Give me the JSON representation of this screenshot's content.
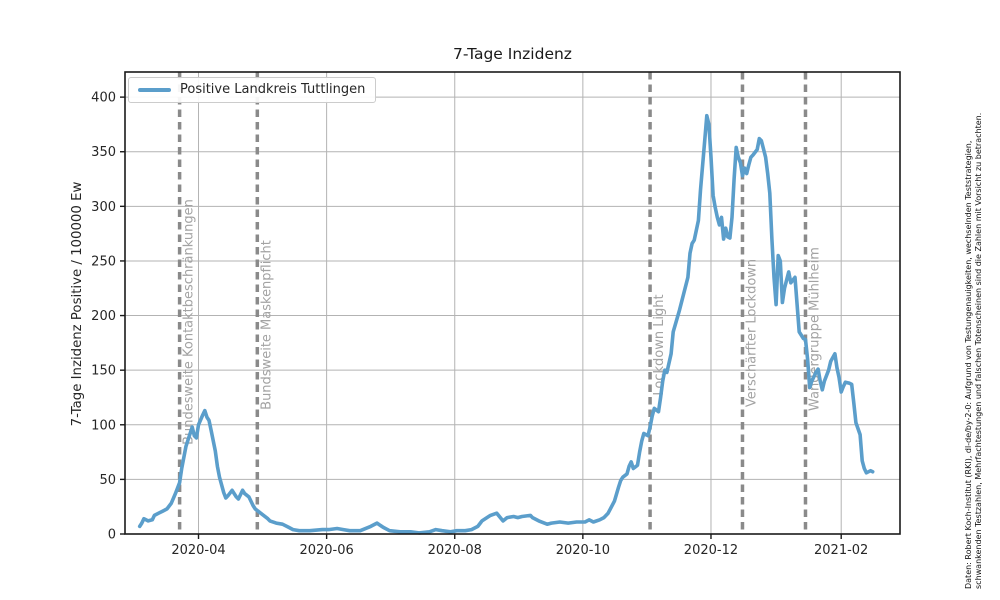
{
  "title": "7-Tage Inzidenz",
  "source_note": {
    "line1": "Daten: Robert Koch-Institut (RKI), dl-de/by-2-0: Aufgrund von Testungenauigkeiten, wechselnden Teststrategien,",
    "line2": "schwankenden Testzahlen, Mehrfachtestungen und falschen Totenscheinen sind die Zahlen mit Vorsicht zu betrachten."
  },
  "colors": {
    "series": "#5b9ecb",
    "grid": "#b3b3b3",
    "frame": "#1a1a1a",
    "text": "#262626",
    "event_line": "#8a8a8a",
    "event_label": "#a3a3a3"
  },
  "chart_data": {
    "type": "line",
    "title": "7-Tage Inzidenz",
    "xlabel": "",
    "ylabel": "7-Tage Inzidenz Positive / 100000 Ew",
    "grid": true,
    "legend_position": "upper left",
    "xlim": [
      "2020-02-26",
      "2021-03-01"
    ],
    "ylim": [
      0,
      423
    ],
    "yticks": [
      0,
      50,
      100,
      150,
      200,
      250,
      300,
      350,
      400
    ],
    "xticks": [
      {
        "date": "2020-04-01",
        "label": "2020-04"
      },
      {
        "date": "2020-06-01",
        "label": "2020-06"
      },
      {
        "date": "2020-08-01",
        "label": "2020-08"
      },
      {
        "date": "2020-10-01",
        "label": "2020-10"
      },
      {
        "date": "2020-12-01",
        "label": "2020-12"
      },
      {
        "date": "2021-02-01",
        "label": "2021-02"
      }
    ],
    "events": [
      {
        "date": "2020-03-23",
        "label": "Bundesweite Kontaktbeschränkungen"
      },
      {
        "date": "2020-04-29",
        "label": "Bundsweite Maskenpflicht"
      },
      {
        "date": "2020-11-02",
        "label": "Lockdown Light"
      },
      {
        "date": "2020-12-16",
        "label": "Verschärfter Lockdown"
      },
      {
        "date": "2021-01-15",
        "label": "Wandergruppe Mühlheim"
      }
    ],
    "series": [
      {
        "name": "Positive Landkreis Tuttlingen",
        "color": "#5b9ecb",
        "points": [
          [
            "2020-03-04",
            7
          ],
          [
            "2020-03-05",
            10
          ],
          [
            "2020-03-06",
            14
          ],
          [
            "2020-03-08",
            12
          ],
          [
            "2020-03-10",
            13
          ],
          [
            "2020-03-11",
            17
          ],
          [
            "2020-03-13",
            19
          ],
          [
            "2020-03-15",
            21
          ],
          [
            "2020-03-17",
            23
          ],
          [
            "2020-03-19",
            28
          ],
          [
            "2020-03-21",
            37
          ],
          [
            "2020-03-23",
            47
          ],
          [
            "2020-03-24",
            60
          ],
          [
            "2020-03-26",
            80
          ],
          [
            "2020-03-28",
            92
          ],
          [
            "2020-03-29",
            98
          ],
          [
            "2020-03-30",
            90
          ],
          [
            "2020-03-31",
            88
          ],
          [
            "2020-04-01",
            100
          ],
          [
            "2020-04-03",
            109
          ],
          [
            "2020-04-04",
            113
          ],
          [
            "2020-04-05",
            107
          ],
          [
            "2020-04-06",
            104
          ],
          [
            "2020-04-07",
            95
          ],
          [
            "2020-04-09",
            76
          ],
          [
            "2020-04-10",
            62
          ],
          [
            "2020-04-11",
            52
          ],
          [
            "2020-04-13",
            38
          ],
          [
            "2020-04-14",
            33
          ],
          [
            "2020-04-15",
            35
          ],
          [
            "2020-04-17",
            40
          ],
          [
            "2020-04-19",
            34
          ],
          [
            "2020-04-20",
            32
          ],
          [
            "2020-04-22",
            40
          ],
          [
            "2020-04-23",
            37
          ],
          [
            "2020-04-25",
            34
          ],
          [
            "2020-04-27",
            26
          ],
          [
            "2020-04-28",
            23
          ],
          [
            "2020-04-30",
            20
          ],
          [
            "2020-05-02",
            17
          ],
          [
            "2020-05-04",
            14
          ],
          [
            "2020-05-05",
            12
          ],
          [
            "2020-05-08",
            10
          ],
          [
            "2020-05-11",
            9
          ],
          [
            "2020-05-14",
            6
          ],
          [
            "2020-05-16",
            4
          ],
          [
            "2020-05-19",
            3
          ],
          [
            "2020-05-24",
            3
          ],
          [
            "2020-05-30",
            4
          ],
          [
            "2020-06-02",
            4
          ],
          [
            "2020-06-06",
            5
          ],
          [
            "2020-06-09",
            4
          ],
          [
            "2020-06-12",
            3
          ],
          [
            "2020-06-17",
            3
          ],
          [
            "2020-06-22",
            7
          ],
          [
            "2020-06-25",
            10
          ],
          [
            "2020-06-28",
            6
          ],
          [
            "2020-07-01",
            3
          ],
          [
            "2020-07-06",
            2
          ],
          [
            "2020-07-11",
            2
          ],
          [
            "2020-07-15",
            1
          ],
          [
            "2020-07-20",
            2
          ],
          [
            "2020-07-23",
            4
          ],
          [
            "2020-07-26",
            3
          ],
          [
            "2020-07-30",
            2
          ],
          [
            "2020-08-02",
            3
          ],
          [
            "2020-08-06",
            3
          ],
          [
            "2020-08-09",
            4
          ],
          [
            "2020-08-12",
            7
          ],
          [
            "2020-08-14",
            12
          ],
          [
            "2020-08-18",
            17
          ],
          [
            "2020-08-21",
            19
          ],
          [
            "2020-08-24",
            12
          ],
          [
            "2020-08-26",
            15
          ],
          [
            "2020-08-29",
            16
          ],
          [
            "2020-08-31",
            15
          ],
          [
            "2020-09-02",
            16
          ],
          [
            "2020-09-06",
            17
          ],
          [
            "2020-09-07",
            15
          ],
          [
            "2020-09-10",
            12
          ],
          [
            "2020-09-14",
            9
          ],
          [
            "2020-09-16",
            10
          ],
          [
            "2020-09-20",
            11
          ],
          [
            "2020-09-24",
            10
          ],
          [
            "2020-09-28",
            11
          ],
          [
            "2020-10-02",
            11
          ],
          [
            "2020-10-04",
            13
          ],
          [
            "2020-10-06",
            11
          ],
          [
            "2020-10-09",
            13
          ],
          [
            "2020-10-11",
            15
          ],
          [
            "2020-10-13",
            19
          ],
          [
            "2020-10-16",
            30
          ],
          [
            "2020-10-18",
            43
          ],
          [
            "2020-10-19",
            49
          ],
          [
            "2020-10-20",
            52
          ],
          [
            "2020-10-22",
            55
          ],
          [
            "2020-10-23",
            62
          ],
          [
            "2020-10-24",
            66
          ],
          [
            "2020-10-25",
            60
          ],
          [
            "2020-10-27",
            63
          ],
          [
            "2020-10-28",
            75
          ],
          [
            "2020-10-29",
            85
          ],
          [
            "2020-10-30",
            92
          ],
          [
            "2020-11-01",
            90
          ],
          [
            "2020-11-02",
            98
          ],
          [
            "2020-11-03",
            108
          ],
          [
            "2020-11-04",
            115
          ],
          [
            "2020-11-06",
            112
          ],
          [
            "2020-11-07",
            125
          ],
          [
            "2020-11-08",
            140
          ],
          [
            "2020-11-09",
            150
          ],
          [
            "2020-11-10",
            148
          ],
          [
            "2020-11-12",
            165
          ],
          [
            "2020-11-13",
            185
          ],
          [
            "2020-11-16",
            205
          ],
          [
            "2020-11-18",
            220
          ],
          [
            "2020-11-20",
            235
          ],
          [
            "2020-11-21",
            257
          ],
          [
            "2020-11-22",
            266
          ],
          [
            "2020-11-23",
            269
          ],
          [
            "2020-11-25",
            287
          ],
          [
            "2020-11-26",
            315
          ],
          [
            "2020-11-28",
            360
          ],
          [
            "2020-11-29",
            383
          ],
          [
            "2020-11-30",
            375
          ],
          [
            "2020-12-01",
            345
          ],
          [
            "2020-12-02",
            310
          ],
          [
            "2020-12-03",
            299
          ],
          [
            "2020-12-04",
            290
          ],
          [
            "2020-12-05",
            283
          ],
          [
            "2020-12-06",
            290
          ],
          [
            "2020-12-07",
            270
          ],
          [
            "2020-12-08",
            280
          ],
          [
            "2020-12-09",
            272
          ],
          [
            "2020-12-10",
            271
          ],
          [
            "2020-12-11",
            290
          ],
          [
            "2020-12-12",
            325
          ],
          [
            "2020-12-13",
            354
          ],
          [
            "2020-12-14",
            345
          ],
          [
            "2020-12-15",
            340
          ],
          [
            "2020-12-16",
            328
          ],
          [
            "2020-12-17",
            335
          ],
          [
            "2020-12-18",
            330
          ],
          [
            "2020-12-19",
            338
          ],
          [
            "2020-12-20",
            345
          ],
          [
            "2020-12-21",
            347
          ],
          [
            "2020-12-23",
            352
          ],
          [
            "2020-12-24",
            362
          ],
          [
            "2020-12-25",
            360
          ],
          [
            "2020-12-27",
            345
          ],
          [
            "2020-12-28",
            330
          ],
          [
            "2020-12-29",
            312
          ],
          [
            "2020-12-30",
            270
          ],
          [
            "2020-12-31",
            235
          ],
          [
            "2021-01-01",
            210
          ],
          [
            "2021-01-02",
            255
          ],
          [
            "2021-01-03",
            250
          ],
          [
            "2021-01-04",
            212
          ],
          [
            "2021-01-05",
            225
          ],
          [
            "2021-01-07",
            240
          ],
          [
            "2021-01-08",
            230
          ],
          [
            "2021-01-10",
            235
          ],
          [
            "2021-01-11",
            210
          ],
          [
            "2021-01-12",
            185
          ],
          [
            "2021-01-14",
            179
          ],
          [
            "2021-01-15",
            178
          ],
          [
            "2021-01-16",
            160
          ],
          [
            "2021-01-17",
            134
          ],
          [
            "2021-01-18",
            140
          ],
          [
            "2021-01-20",
            148
          ],
          [
            "2021-01-21",
            151
          ],
          [
            "2021-01-22",
            140
          ],
          [
            "2021-01-23",
            132
          ],
          [
            "2021-01-24",
            140
          ],
          [
            "2021-01-26",
            150
          ],
          [
            "2021-01-27",
            158
          ],
          [
            "2021-01-29",
            165
          ],
          [
            "2021-01-30",
            152
          ],
          [
            "2021-01-31",
            143
          ],
          [
            "2021-02-01",
            130
          ],
          [
            "2021-02-02",
            135
          ],
          [
            "2021-02-03",
            139
          ],
          [
            "2021-02-05",
            138
          ],
          [
            "2021-02-06",
            137
          ],
          [
            "2021-02-07",
            120
          ],
          [
            "2021-02-08",
            102
          ],
          [
            "2021-02-10",
            91
          ],
          [
            "2021-02-11",
            67
          ],
          [
            "2021-02-12",
            60
          ],
          [
            "2021-02-13",
            56
          ],
          [
            "2021-02-15",
            58
          ],
          [
            "2021-02-16",
            57
          ]
        ]
      }
    ]
  }
}
